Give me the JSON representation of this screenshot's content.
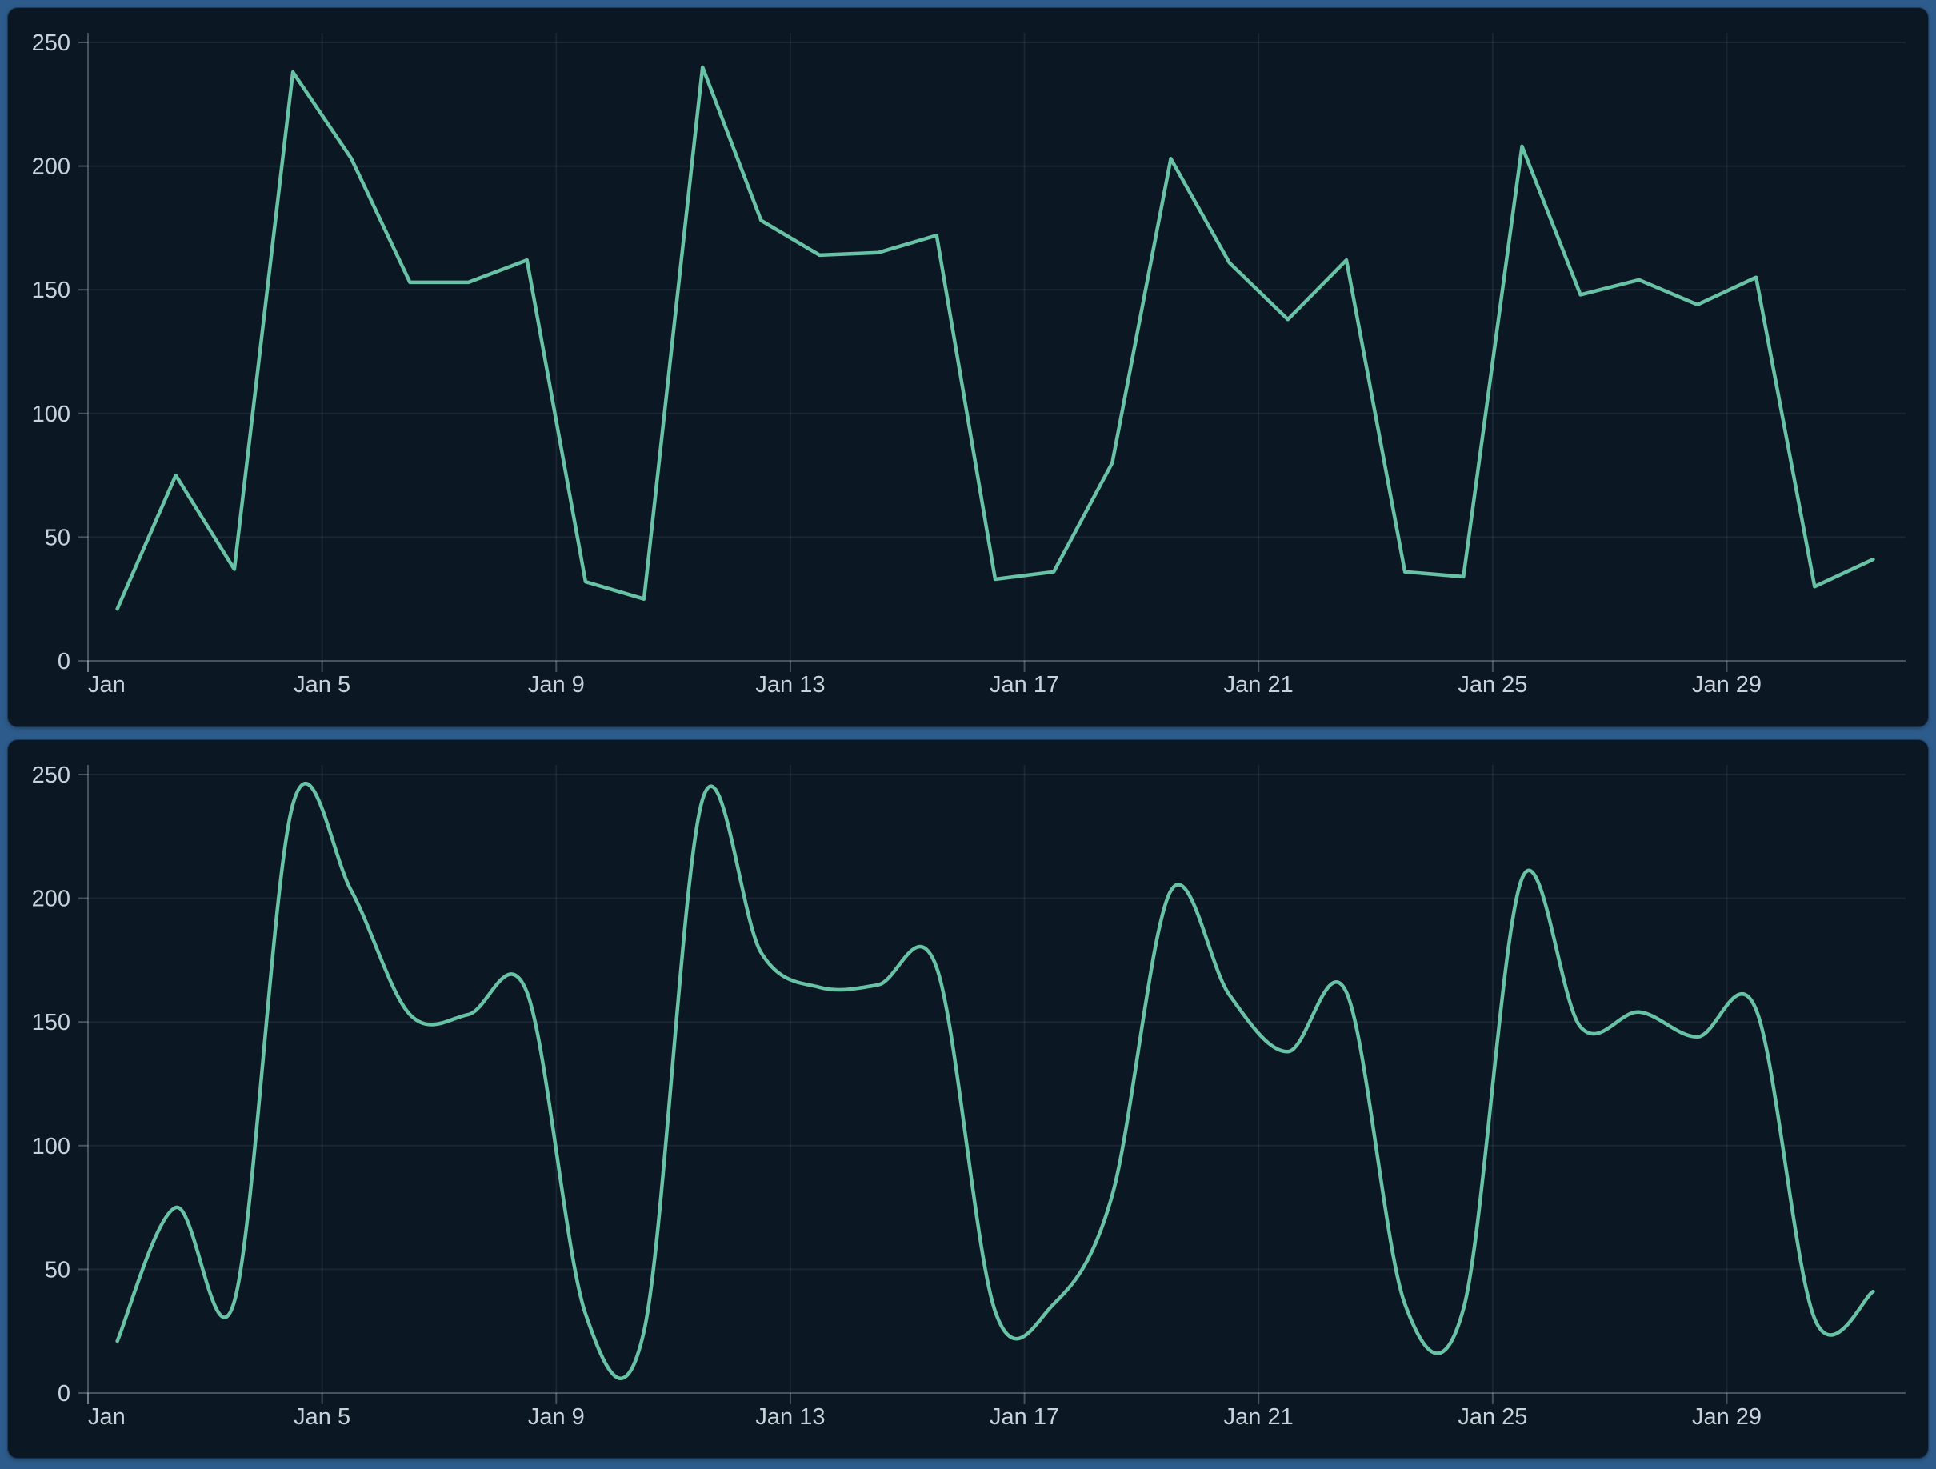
{
  "page": {
    "frame_color": "#2d5b8b",
    "panel_background": "#0b1722"
  },
  "panels": [
    {
      "name": "top-chart-panel"
    },
    {
      "name": "bottom-chart-panel"
    }
  ],
  "chart_data": [
    {
      "type": "line",
      "line_style": "linear",
      "title": "",
      "xlabel": "",
      "ylabel": "",
      "categories": [
        "Jan 1",
        "Jan 2",
        "Jan 3",
        "Jan 4",
        "Jan 5",
        "Jan 6",
        "Jan 7",
        "Jan 8",
        "Jan 9",
        "Jan 10",
        "Jan 11",
        "Jan 12",
        "Jan 13",
        "Jan 14",
        "Jan 15",
        "Jan 16",
        "Jan 17",
        "Jan 18",
        "Jan 19",
        "Jan 20",
        "Jan 21",
        "Jan 22",
        "Jan 23",
        "Jan 24",
        "Jan 25",
        "Jan 26",
        "Jan 27",
        "Jan 28",
        "Jan 29",
        "Jan 30",
        "Jan 31"
      ],
      "values": [
        21,
        75,
        37,
        238,
        203,
        153,
        153,
        162,
        32,
        25,
        240,
        178,
        164,
        165,
        172,
        33,
        36,
        80,
        203,
        161,
        138,
        162,
        36,
        34,
        208,
        148,
        154,
        144,
        155,
        30,
        41
      ],
      "x_tick_labels": [
        "Jan",
        "Jan 5",
        "Jan 9",
        "Jan 13",
        "Jan 17",
        "Jan 21",
        "Jan 25",
        "Jan 29"
      ],
      "x_tick_indices": [
        0,
        4,
        8,
        12,
        16,
        20,
        24,
        28
      ],
      "y_tick_labels": [
        "0",
        "50",
        "100",
        "150",
        "200",
        "250"
      ],
      "y_tick_values": [
        0,
        50,
        100,
        150,
        200,
        250
      ],
      "ylim": [
        0,
        250
      ],
      "grid": true,
      "legend": false,
      "line_color": "#68c2a5",
      "grid_color": "rgba(205,222,238,0.08)",
      "axis_color": "rgba(205,222,238,0.30)",
      "label_color": "#c9d2da"
    },
    {
      "type": "line",
      "line_style": "smooth",
      "title": "",
      "xlabel": "",
      "ylabel": "",
      "categories": [
        "Jan 1",
        "Jan 2",
        "Jan 3",
        "Jan 4",
        "Jan 5",
        "Jan 6",
        "Jan 7",
        "Jan 8",
        "Jan 9",
        "Jan 10",
        "Jan 11",
        "Jan 12",
        "Jan 13",
        "Jan 14",
        "Jan 15",
        "Jan 16",
        "Jan 17",
        "Jan 18",
        "Jan 19",
        "Jan 20",
        "Jan 21",
        "Jan 22",
        "Jan 23",
        "Jan 24",
        "Jan 25",
        "Jan 26",
        "Jan 27",
        "Jan 28",
        "Jan 29",
        "Jan 30",
        "Jan 31"
      ],
      "values": [
        21,
        75,
        37,
        238,
        203,
        153,
        153,
        162,
        32,
        25,
        240,
        178,
        164,
        165,
        172,
        33,
        36,
        80,
        203,
        161,
        138,
        162,
        36,
        34,
        208,
        148,
        154,
        144,
        155,
        30,
        41
      ],
      "x_tick_labels": [
        "Jan",
        "Jan 5",
        "Jan 9",
        "Jan 13",
        "Jan 17",
        "Jan 21",
        "Jan 25",
        "Jan 29"
      ],
      "x_tick_indices": [
        0,
        4,
        8,
        12,
        16,
        20,
        24,
        28
      ],
      "y_tick_labels": [
        "0",
        "50",
        "100",
        "150",
        "200",
        "250"
      ],
      "y_tick_values": [
        0,
        50,
        100,
        150,
        200,
        250
      ],
      "ylim": [
        0,
        250
      ],
      "grid": true,
      "legend": false,
      "line_color": "#68c2a5",
      "grid_color": "rgba(205,222,238,0.08)",
      "axis_color": "rgba(205,222,238,0.30)",
      "label_color": "#c9d2da"
    }
  ]
}
